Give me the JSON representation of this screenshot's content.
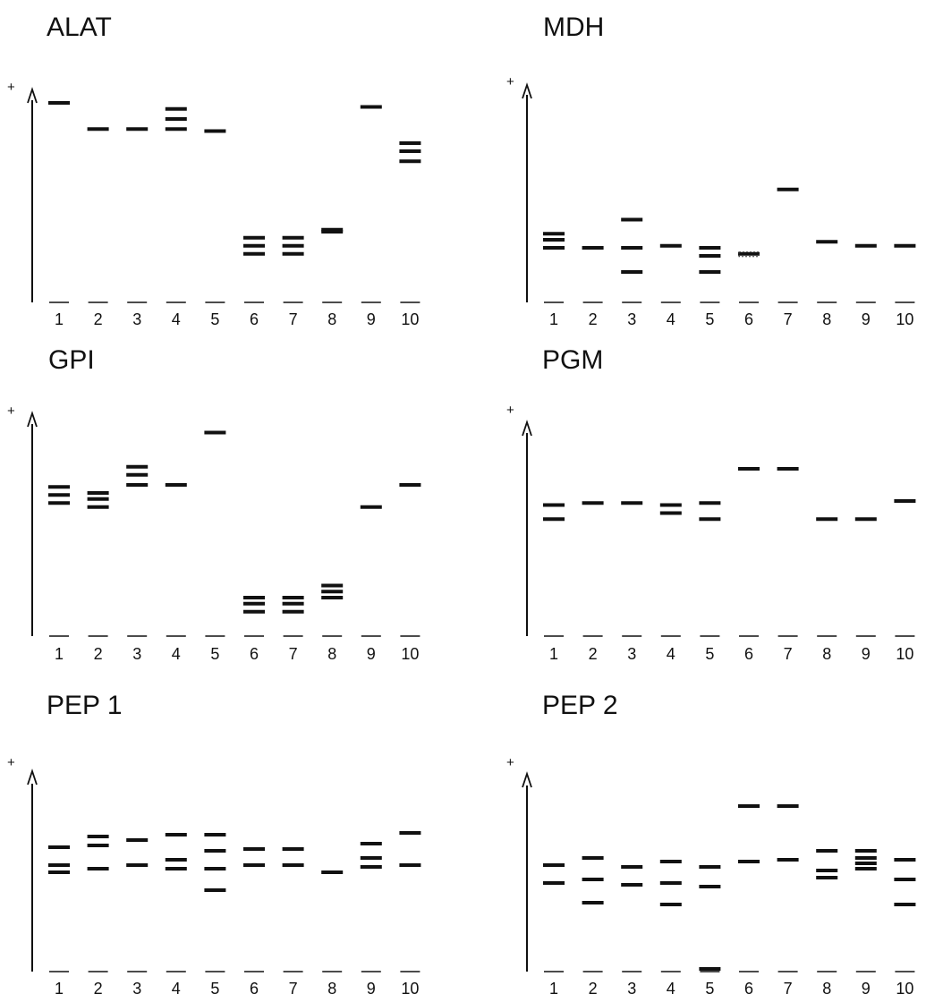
{
  "panels": [
    {
      "title": "ALAT",
      "plus": "+",
      "lanes": [
        "1",
        "2",
        "3",
        "4",
        "5",
        "6",
        "7",
        "8",
        "9",
        "10"
      ],
      "bands": [
        [
          1.0
        ],
        [
          0.87
        ],
        [
          0.87
        ],
        [
          0.97,
          0.92,
          0.87
        ],
        [
          0.86
        ],
        [
          0.33,
          0.29,
          0.25
        ],
        [
          0.33,
          0.29,
          0.25
        ],
        [
          0.37,
          0.36
        ],
        [
          0.98
        ],
        [
          0.8,
          0.76,
          0.71
        ]
      ]
    },
    {
      "title": "MDH",
      "plus": "+",
      "lanes": [
        "1",
        "2",
        "3",
        "4",
        "5",
        "6",
        "7",
        "8",
        "9",
        "10"
      ],
      "bands": [
        [
          0.35,
          0.32,
          0.28
        ],
        [
          0.28
        ],
        [
          0.42,
          0.28,
          0.16
        ],
        [
          0.29
        ],
        [
          0.28,
          0.24,
          0.16
        ],
        [
          0.25
        ],
        [
          0.57
        ],
        [
          0.31
        ],
        [
          0.29
        ],
        [
          0.29
        ]
      ],
      "dotted_bands": [
        null,
        null,
        null,
        null,
        null,
        [
          0.25
        ],
        null,
        null,
        null,
        null
      ]
    },
    {
      "title": "GPI",
      "plus": "+",
      "lanes": [
        "1",
        "2",
        "3",
        "4",
        "5",
        "6",
        "7",
        "8",
        "9",
        "10"
      ],
      "bands": [
        [
          0.75,
          0.71,
          0.67
        ],
        [
          0.72,
          0.69,
          0.65
        ],
        [
          0.85,
          0.81,
          0.76
        ],
        [
          0.76
        ],
        [
          1.02
        ],
        [
          0.2,
          0.17,
          0.13
        ],
        [
          0.2,
          0.17,
          0.13
        ],
        [
          0.26,
          0.23,
          0.2
        ],
        [
          0.65
        ],
        [
          0.76
        ]
      ]
    },
    {
      "title": "PGM",
      "plus": "+",
      "lanes": [
        "1",
        "2",
        "3",
        "4",
        "5",
        "6",
        "7",
        "8",
        "9",
        "10"
      ],
      "bands": [
        [
          0.66,
          0.59
        ],
        [
          0.67
        ],
        [
          0.67
        ],
        [
          0.66,
          0.62
        ],
        [
          0.67,
          0.59
        ],
        [
          0.84
        ],
        [
          0.84
        ],
        [
          0.59
        ],
        [
          0.59
        ],
        [
          0.68
        ]
      ]
    },
    {
      "title": "PEP 1",
      "plus": "+",
      "lanes": [
        "1",
        "2",
        "3",
        "4",
        "5",
        "6",
        "7",
        "8",
        "9",
        "10"
      ],
      "bands": [
        [
          0.7,
          0.6,
          0.56
        ],
        [
          0.76,
          0.71,
          0.58
        ],
        [
          0.74,
          0.6
        ],
        [
          0.77,
          0.63,
          0.58
        ],
        [
          0.77,
          0.68,
          0.58,
          0.46
        ],
        [
          0.69,
          0.6
        ],
        [
          0.69,
          0.6
        ],
        [
          0.56
        ],
        [
          0.72,
          0.64,
          0.59
        ],
        [
          0.78,
          0.6
        ]
      ]
    },
    {
      "title": "PEP 2",
      "plus": "+",
      "lanes": [
        "1",
        "2",
        "3",
        "4",
        "5",
        "6",
        "7",
        "8",
        "9",
        "10"
      ],
      "bands": [
        [
          0.6,
          0.5
        ],
        [
          0.64,
          0.52,
          0.39
        ],
        [
          0.59,
          0.49
        ],
        [
          0.62,
          0.5,
          0.38
        ],
        [
          0.59,
          0.48,
          0.02
        ],
        [
          0.93,
          0.62
        ],
        [
          0.93,
          0.63
        ],
        [
          0.68,
          0.57,
          0.53
        ],
        [
          0.68,
          0.64,
          0.61,
          0.58
        ],
        [
          0.63,
          0.52,
          0.38
        ]
      ]
    }
  ]
}
